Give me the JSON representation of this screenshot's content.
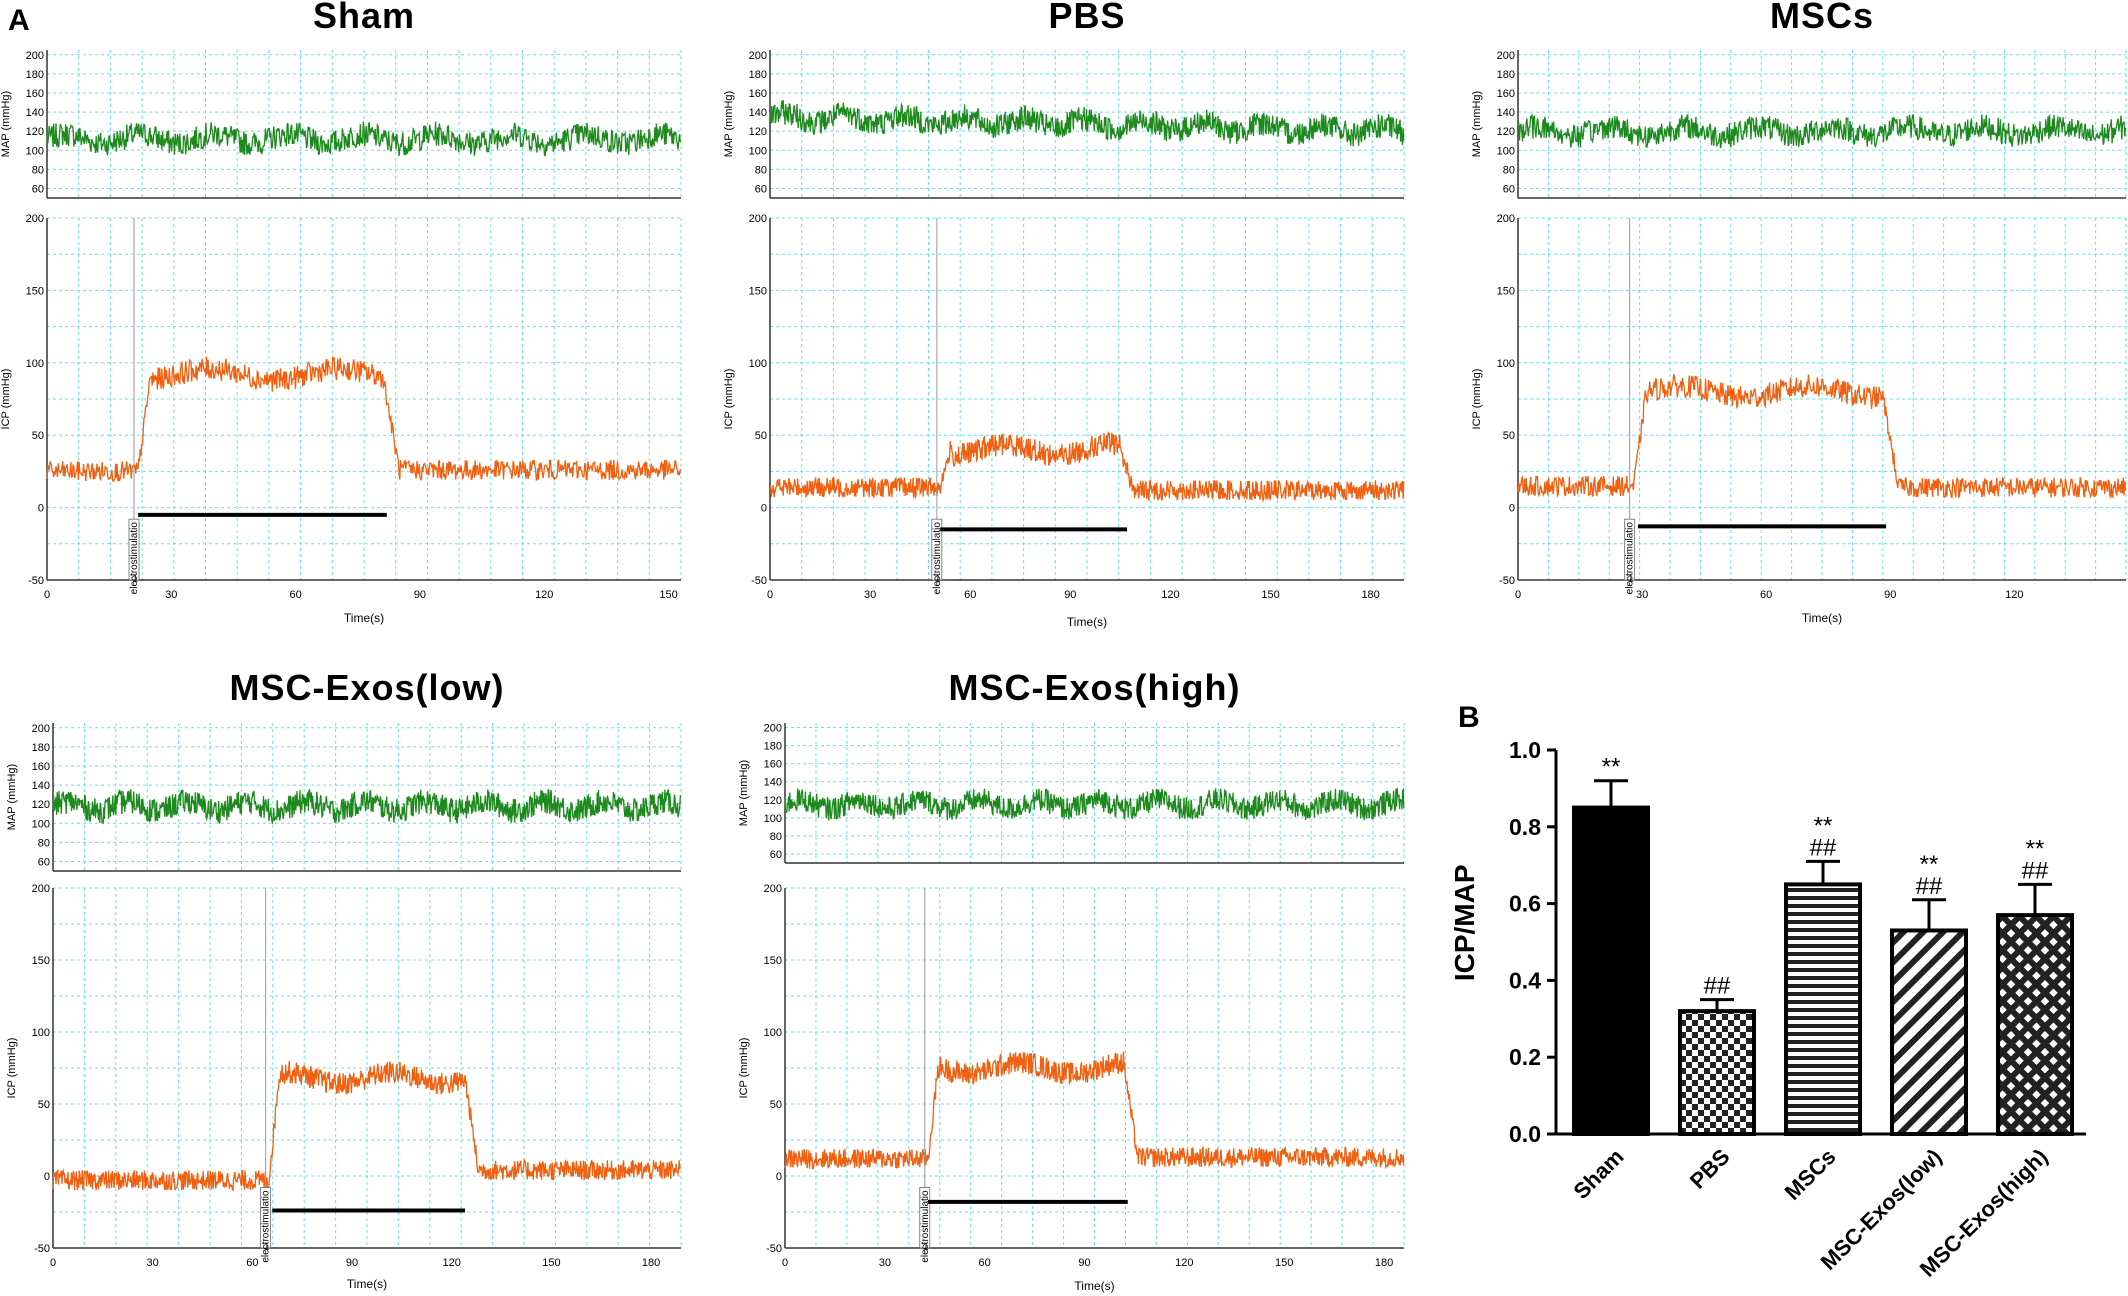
{
  "figure": {
    "panel_a_label": "A",
    "panel_b_label": "B"
  },
  "colors": {
    "map_trace": "#1e8a1e",
    "icp_trace": "#f06010",
    "grid": "#66e0e6",
    "axis": "#333333",
    "bar_fill": "#000000"
  },
  "chart_data": [
    {
      "type": "line",
      "title": "Sham",
      "map_axis_label": "MAP (mmHg)",
      "map_ticks": [
        200,
        180,
        160,
        140,
        120,
        100,
        80,
        60
      ],
      "map_ylim": [
        50,
        205
      ],
      "map_level": 112,
      "icp_axis_label": "ICP (mmHg)",
      "icp_ticks": [
        200,
        150,
        100,
        50,
        0,
        -50
      ],
      "icp_ylim": [
        -50,
        200
      ],
      "xlabel": "Time(s)",
      "x_ticks": [
        0,
        30,
        60,
        90,
        120,
        150
      ],
      "xlim": [
        0,
        153
      ],
      "event_label": "electrostimulatio",
      "event_number": "1",
      "event_time": 21,
      "baseline_before": 25,
      "response_start": 22,
      "response_end": 81,
      "response_level": 92,
      "baseline_after": 26,
      "bar_start": 22,
      "bar_end": 82,
      "bar_level": -5
    },
    {
      "type": "line",
      "title": "PBS",
      "map_axis_label": "MAP (mmHg)",
      "map_ticks": [
        200,
        180,
        160,
        140,
        120,
        100,
        80,
        60
      ],
      "map_ylim": [
        50,
        205
      ],
      "map_level": 135,
      "map_end_level": 120,
      "icp_axis_label": "ICP (mmHg)",
      "icp_ticks": [
        200,
        150,
        100,
        50,
        0,
        -50
      ],
      "icp_ylim": [
        -50,
        200
      ],
      "xlabel": "Time(s)",
      "x_ticks": [
        0,
        30,
        60,
        90,
        120,
        150,
        180
      ],
      "xlim": [
        0,
        190
      ],
      "event_label": "electrostimulatio",
      "event_number": "1",
      "event_time": 50,
      "baseline_before": 14,
      "response_start": 51,
      "response_end": 105,
      "response_level": 40,
      "baseline_after": 12,
      "bar_start": 51,
      "bar_end": 107,
      "bar_level": -15
    },
    {
      "type": "line",
      "title": "MSCs",
      "map_axis_label": "MAP (mmHg)",
      "map_ticks": [
        200,
        180,
        160,
        140,
        120,
        100,
        80,
        60
      ],
      "map_ylim": [
        50,
        205
      ],
      "map_level": 120,
      "icp_axis_label": "ICP (mmHg)",
      "icp_ticks": [
        200,
        150,
        100,
        50,
        0,
        -50
      ],
      "icp_ylim": [
        -50,
        200
      ],
      "xlabel": "Time(s)",
      "x_ticks": [
        0,
        30,
        60,
        90,
        120
      ],
      "xlim": [
        0,
        147
      ],
      "event_label": "electrostimulatio",
      "event_number": "1",
      "event_time": 27,
      "baseline_before": 15,
      "response_start": 28,
      "response_end": 88,
      "response_level": 80,
      "baseline_after": 14,
      "bar_start": 29,
      "bar_end": 89,
      "bar_level": -13
    },
    {
      "type": "line",
      "title": "MSC-Exos(low)",
      "map_axis_label": "MAP (mmHg)",
      "map_ticks": [
        200,
        180,
        160,
        140,
        120,
        100,
        80,
        60
      ],
      "map_ylim": [
        50,
        205
      ],
      "map_level": 118,
      "icp_axis_label": "ICP (mmHg)",
      "icp_ticks": [
        200,
        150,
        100,
        50,
        0,
        -50
      ],
      "icp_ylim": [
        -50,
        200
      ],
      "xlabel": "Time(s)",
      "x_ticks": [
        0,
        30,
        60,
        90,
        120,
        150,
        180
      ],
      "xlim": [
        0,
        189
      ],
      "event_label": "electrostimulatio",
      "event_number": "1",
      "event_time": 64,
      "baseline_before": -3,
      "response_start": 65,
      "response_end": 124,
      "response_level": 68,
      "baseline_after": 4,
      "bar_start": 66,
      "bar_end": 124,
      "bar_level": -24
    },
    {
      "type": "line",
      "title": "MSC-Exos(high)",
      "map_axis_label": "MAP (mmHg)",
      "map_ticks": [
        200,
        180,
        160,
        140,
        120,
        100,
        80,
        60
      ],
      "map_ylim": [
        50,
        205
      ],
      "map_level": 115,
      "icp_axis_label": "ICP (mmHg)",
      "icp_ticks": [
        200,
        150,
        100,
        50,
        0,
        -50
      ],
      "icp_ylim": [
        -50,
        200
      ],
      "xlabel": "Time(s)",
      "x_ticks": [
        0,
        30,
        60,
        90,
        120,
        150,
        180
      ],
      "xlim": [
        0,
        186
      ],
      "event_label": "electrostimulatio",
      "event_number": "1",
      "event_time": 42,
      "baseline_before": 12,
      "response_start": 43,
      "response_end": 102,
      "response_level": 75,
      "baseline_after": 13,
      "bar_start": 43,
      "bar_end": 103,
      "bar_level": -18
    },
    {
      "type": "bar",
      "ylabel": "ICP/MAP",
      "ylim": [
        0,
        1.0
      ],
      "y_ticks": [
        "0.0",
        "0.2",
        "0.4",
        "0.6",
        "0.8",
        "1.0"
      ],
      "categories": [
        "Sham",
        "PBS",
        "MSCs",
        "MSC-Exos(low)",
        "MSC-Exos(high)"
      ],
      "values": [
        0.85,
        0.32,
        0.65,
        0.53,
        0.57
      ],
      "errors": [
        0.07,
        0.03,
        0.06,
        0.08,
        0.08
      ],
      "patterns": [
        "solid",
        "checker",
        "horizontal-lines",
        "diagonal-lines",
        "crosshatch"
      ],
      "annotations": [
        [
          "**"
        ],
        [
          "##"
        ],
        [
          "**",
          "##"
        ],
        [
          "**",
          "##"
        ],
        [
          "**",
          "##"
        ]
      ]
    }
  ]
}
